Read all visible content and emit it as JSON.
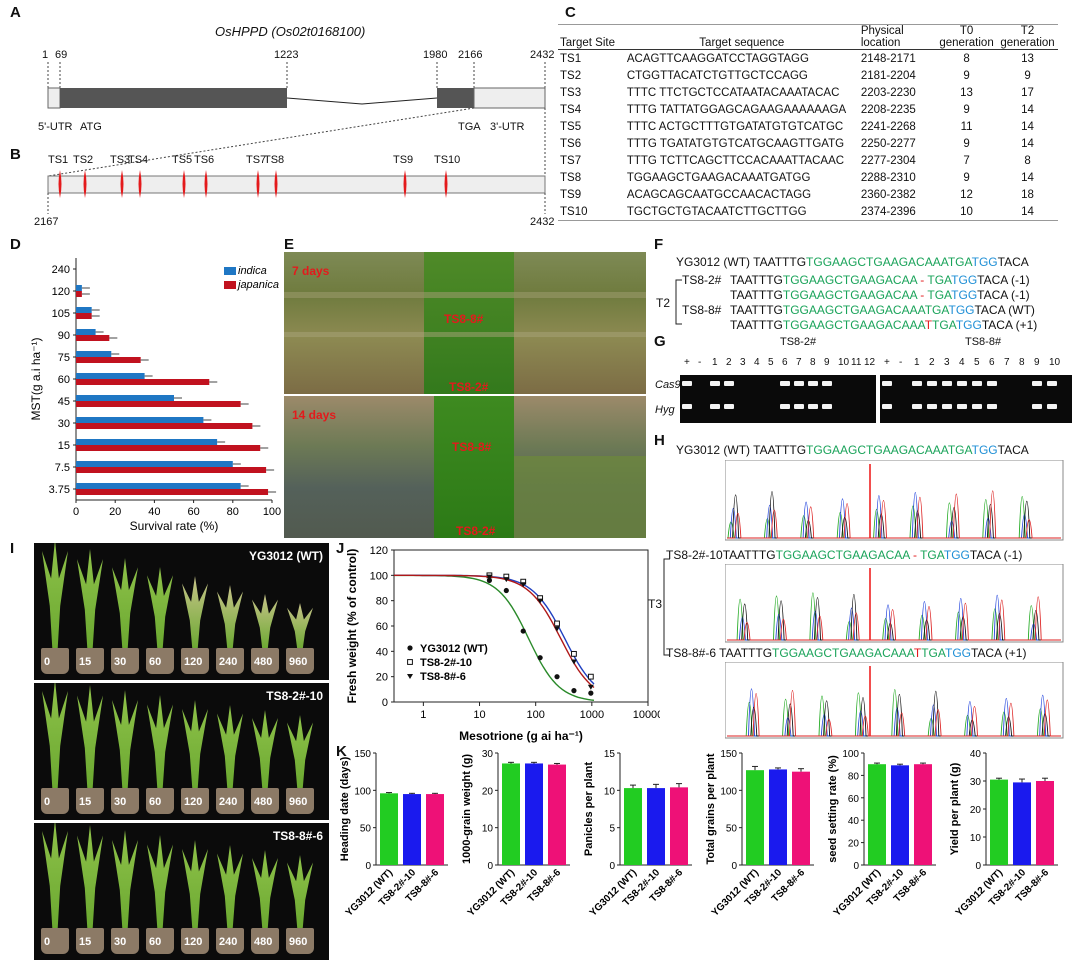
{
  "panels": {
    "A": "A",
    "B": "B",
    "C": "C",
    "D": "D",
    "E": "E",
    "F": "F",
    "G": "G",
    "H": "H",
    "I": "I",
    "J": "J",
    "K": "K"
  },
  "gene_structure": {
    "title": "OsHPPD",
    "title_paren": "(Os02t0168100)",
    "positions": [
      "1",
      "69",
      "1223",
      "1980",
      "2166",
      "2432"
    ],
    "utr5": "5'-UTR",
    "atg": "ATG",
    "tga": "TGA",
    "utr3": "3'-UTR",
    "region_start": "2167",
    "region_end": "2432",
    "target_labels": [
      "TS1",
      "TS2",
      "TS3",
      "TS4",
      "TS5",
      "TS6",
      "TS7",
      "TS8",
      "TS9",
      "TS10"
    ]
  },
  "target_table": {
    "headers": [
      "Target Site",
      "Target sequence",
      "Physical location",
      "T0 generation",
      "T2 generation"
    ],
    "rows": [
      [
        "TS1",
        "ACAGTTCAAGGATCCTAGGTAGG",
        "2148-2171",
        "8",
        "13"
      ],
      [
        "TS2",
        "CTGGTTACATCTGTTGCTCCAGG",
        "2181-2204",
        "9",
        "9"
      ],
      [
        "TS3",
        "TTTC TTCTGCTCCATAATACAAATACAC",
        "2203-2230",
        "13",
        "17"
      ],
      [
        "TS4",
        "TTTG TATTATGGAGCAGAAGAAAAAAGA",
        "2208-2235",
        "9",
        "14"
      ],
      [
        "TS5",
        "TTTC ACTGCTTTGTGATATGTGTCATGC",
        "2241-2268",
        "11",
        "14"
      ],
      [
        "TS6",
        "TTTG TGATATGTGTCATGCAAGTTGATG",
        "2250-2277",
        "9",
        "14"
      ],
      [
        "TS7",
        "TTTG TCTTCAGCTTCCACAAATTACAAC",
        "2277-2304",
        "7",
        "8"
      ],
      [
        "TS8",
        "TGGAAGCTGAAGACAAATGATGG",
        "2288-2310",
        "9",
        "14"
      ],
      [
        "TS9",
        "ACAGCAGCAATGCCAACACTAGG",
        "2360-2382",
        "12",
        "18"
      ],
      [
        "TS10",
        "TGCTGCTGTACAATCTTGCTTGG",
        "2374-2396",
        "10",
        "14"
      ]
    ]
  },
  "chart_data": [
    {
      "type": "bar",
      "panel": "D",
      "orientation": "horizontal",
      "categories": [
        "240",
        "120",
        "105",
        "90",
        "75",
        "60",
        "45",
        "30",
        "15",
        "7.5",
        "3.75"
      ],
      "series": [
        {
          "name": "indica",
          "color": "#1f77c4",
          "values": [
            0,
            3,
            8,
            10,
            18,
            35,
            50,
            65,
            72,
            80,
            84
          ]
        },
        {
          "name": "japanica",
          "color": "#c1121f",
          "values": [
            0,
            3,
            8,
            17,
            33,
            68,
            84,
            90,
            94,
            97,
            98
          ]
        }
      ],
      "xlabel": "Survival rate (%)",
      "ylabel": "MST(g a.i ha⁻¹)",
      "xlim": [
        0,
        100
      ],
      "xticks": [
        "0",
        "20",
        "40",
        "60",
        "80",
        "100"
      ],
      "legend": "top-right"
    },
    {
      "type": "line",
      "panel": "J",
      "xscale": "log",
      "xlabel": "Mesotrione (g ai ha⁻¹)",
      "ylabel": "Fresh weight (% of control)",
      "xlim": [
        0.3,
        10000
      ],
      "ylim": [
        0,
        120
      ],
      "xticks": [
        "1",
        "10",
        "100",
        "1000",
        "10000"
      ],
      "yticks": [
        "0",
        "20",
        "40",
        "60",
        "80",
        "100",
        "120"
      ],
      "series": [
        {
          "name": "YG3012 (WT)",
          "marker": "circle",
          "color": "#2a8a2a",
          "ec50": 75,
          "hill": 1.6,
          "x": [
            15,
            30,
            60,
            120,
            240,
            480,
            960
          ],
          "y": [
            96,
            88,
            56,
            35,
            20,
            9,
            7
          ]
        },
        {
          "name": "TS8-2#-10",
          "marker": "square",
          "color": "#1f3fc0",
          "ec50": 330,
          "hill": 1.5,
          "x": [
            15,
            30,
            60,
            120,
            240,
            480,
            960
          ],
          "y": [
            100,
            99,
            95,
            82,
            62,
            38,
            20
          ]
        },
        {
          "name": "TS8-8#-6",
          "marker": "triangle",
          "color": "#b01818",
          "ec50": 280,
          "hill": 1.5,
          "x": [
            15,
            30,
            60,
            120,
            240,
            480,
            960
          ],
          "y": [
            99,
            97,
            93,
            80,
            58,
            32,
            12
          ]
        }
      ]
    },
    {
      "type": "bar",
      "panel": "K",
      "categories": [
        "YG3012 (WT)",
        "TS8-2#-10",
        "TS8-8#-6"
      ],
      "colors": [
        "#22cc22",
        "#1a1aee",
        "#ee1177"
      ],
      "subplots": [
        {
          "ylabel": "Heading date (days)",
          "ylim": [
            0,
            150
          ],
          "yticks": [
            "0",
            "50",
            "100",
            "150"
          ],
          "values": [
            96,
            95,
            95
          ],
          "errors": [
            1,
            1,
            1
          ]
        },
        {
          "ylabel": "1000-grain weight (g)",
          "ylim": [
            0,
            30
          ],
          "yticks": [
            "0",
            "10",
            "20",
            "30"
          ],
          "values": [
            27.2,
            27.2,
            26.9
          ],
          "errors": [
            0.3,
            0.3,
            0.3
          ]
        },
        {
          "ylabel": "Panicles per plant",
          "ylim": [
            0,
            15
          ],
          "yticks": [
            "0",
            "5",
            "10",
            "15"
          ],
          "values": [
            10.3,
            10.3,
            10.4
          ],
          "errors": [
            0.4,
            0.5,
            0.5
          ]
        },
        {
          "ylabel": "Total grains per plant",
          "ylim": [
            0,
            150
          ],
          "yticks": [
            "0",
            "50",
            "100",
            "150"
          ],
          "values": [
            127,
            128,
            125
          ],
          "errors": [
            5,
            2,
            4
          ]
        },
        {
          "ylabel": "seed setting rate (%)",
          "ylim": [
            0,
            100
          ],
          "yticks": [
            "0",
            "20",
            "40",
            "60",
            "80",
            "100"
          ],
          "values": [
            90,
            89,
            90
          ],
          "errors": [
            1,
            1,
            1
          ]
        },
        {
          "ylabel": "Yield per plant (g)",
          "ylim": [
            0,
            40
          ],
          "yticks": [
            "0",
            "10",
            "20",
            "30",
            "40"
          ],
          "values": [
            30.5,
            29.5,
            30
          ],
          "errors": [
            0.5,
            1.2,
            1
          ]
        }
      ]
    }
  ],
  "photo_e": {
    "top_label": "7 days",
    "bottom_label": "14 days",
    "ts88": "TS8-8#",
    "ts82": "TS8-2#"
  },
  "seq_f": {
    "wt_name": "YG3012 (WT)",
    "t2": "T2",
    "ts82": "TS8-2#",
    "ts88": "TS8-8#",
    "prefix": "TAATTTG",
    "green": "TGGAAGCTGAAGACAAATGA",
    "blue": "TGG",
    "suffix": "TACA",
    "del_green1": "TGGAAGCTGAAGACAA",
    "del_dash": "-",
    "del_green2": "TGA",
    "ins_green1": "TGGAAGCTGAAGACAAA",
    "ins_red": "T",
    "ins_green2": "TGA",
    "m1": "(-1)",
    "wt": "(WT)",
    "p1": "(+1)"
  },
  "gel_g": {
    "ts82": "TS8-2#",
    "ts88": "TS8-8#",
    "lanes_left": [
      "+",
      "-",
      "1",
      "2",
      "3",
      "4",
      "5",
      "6",
      "7",
      "8",
      "9",
      "10",
      "11",
      "12"
    ],
    "lanes_right": [
      "+",
      "-",
      "1",
      "2",
      "3",
      "4",
      "5",
      "6",
      "7",
      "8",
      "9",
      "10"
    ],
    "rows": [
      "Cas9",
      "Hyg"
    ]
  },
  "seq_h": {
    "wt": "YG3012 (WT)",
    "t3": "T3",
    "line1": "TS8-2#-10",
    "line2": "TS8-8#-6"
  },
  "photo_i": {
    "labels": [
      "YG3012 (WT)",
      "TS8-2#-10",
      "TS8-8#-6"
    ],
    "doses": [
      "0",
      "15",
      "30",
      "60",
      "120",
      "240",
      "480",
      "960"
    ]
  }
}
